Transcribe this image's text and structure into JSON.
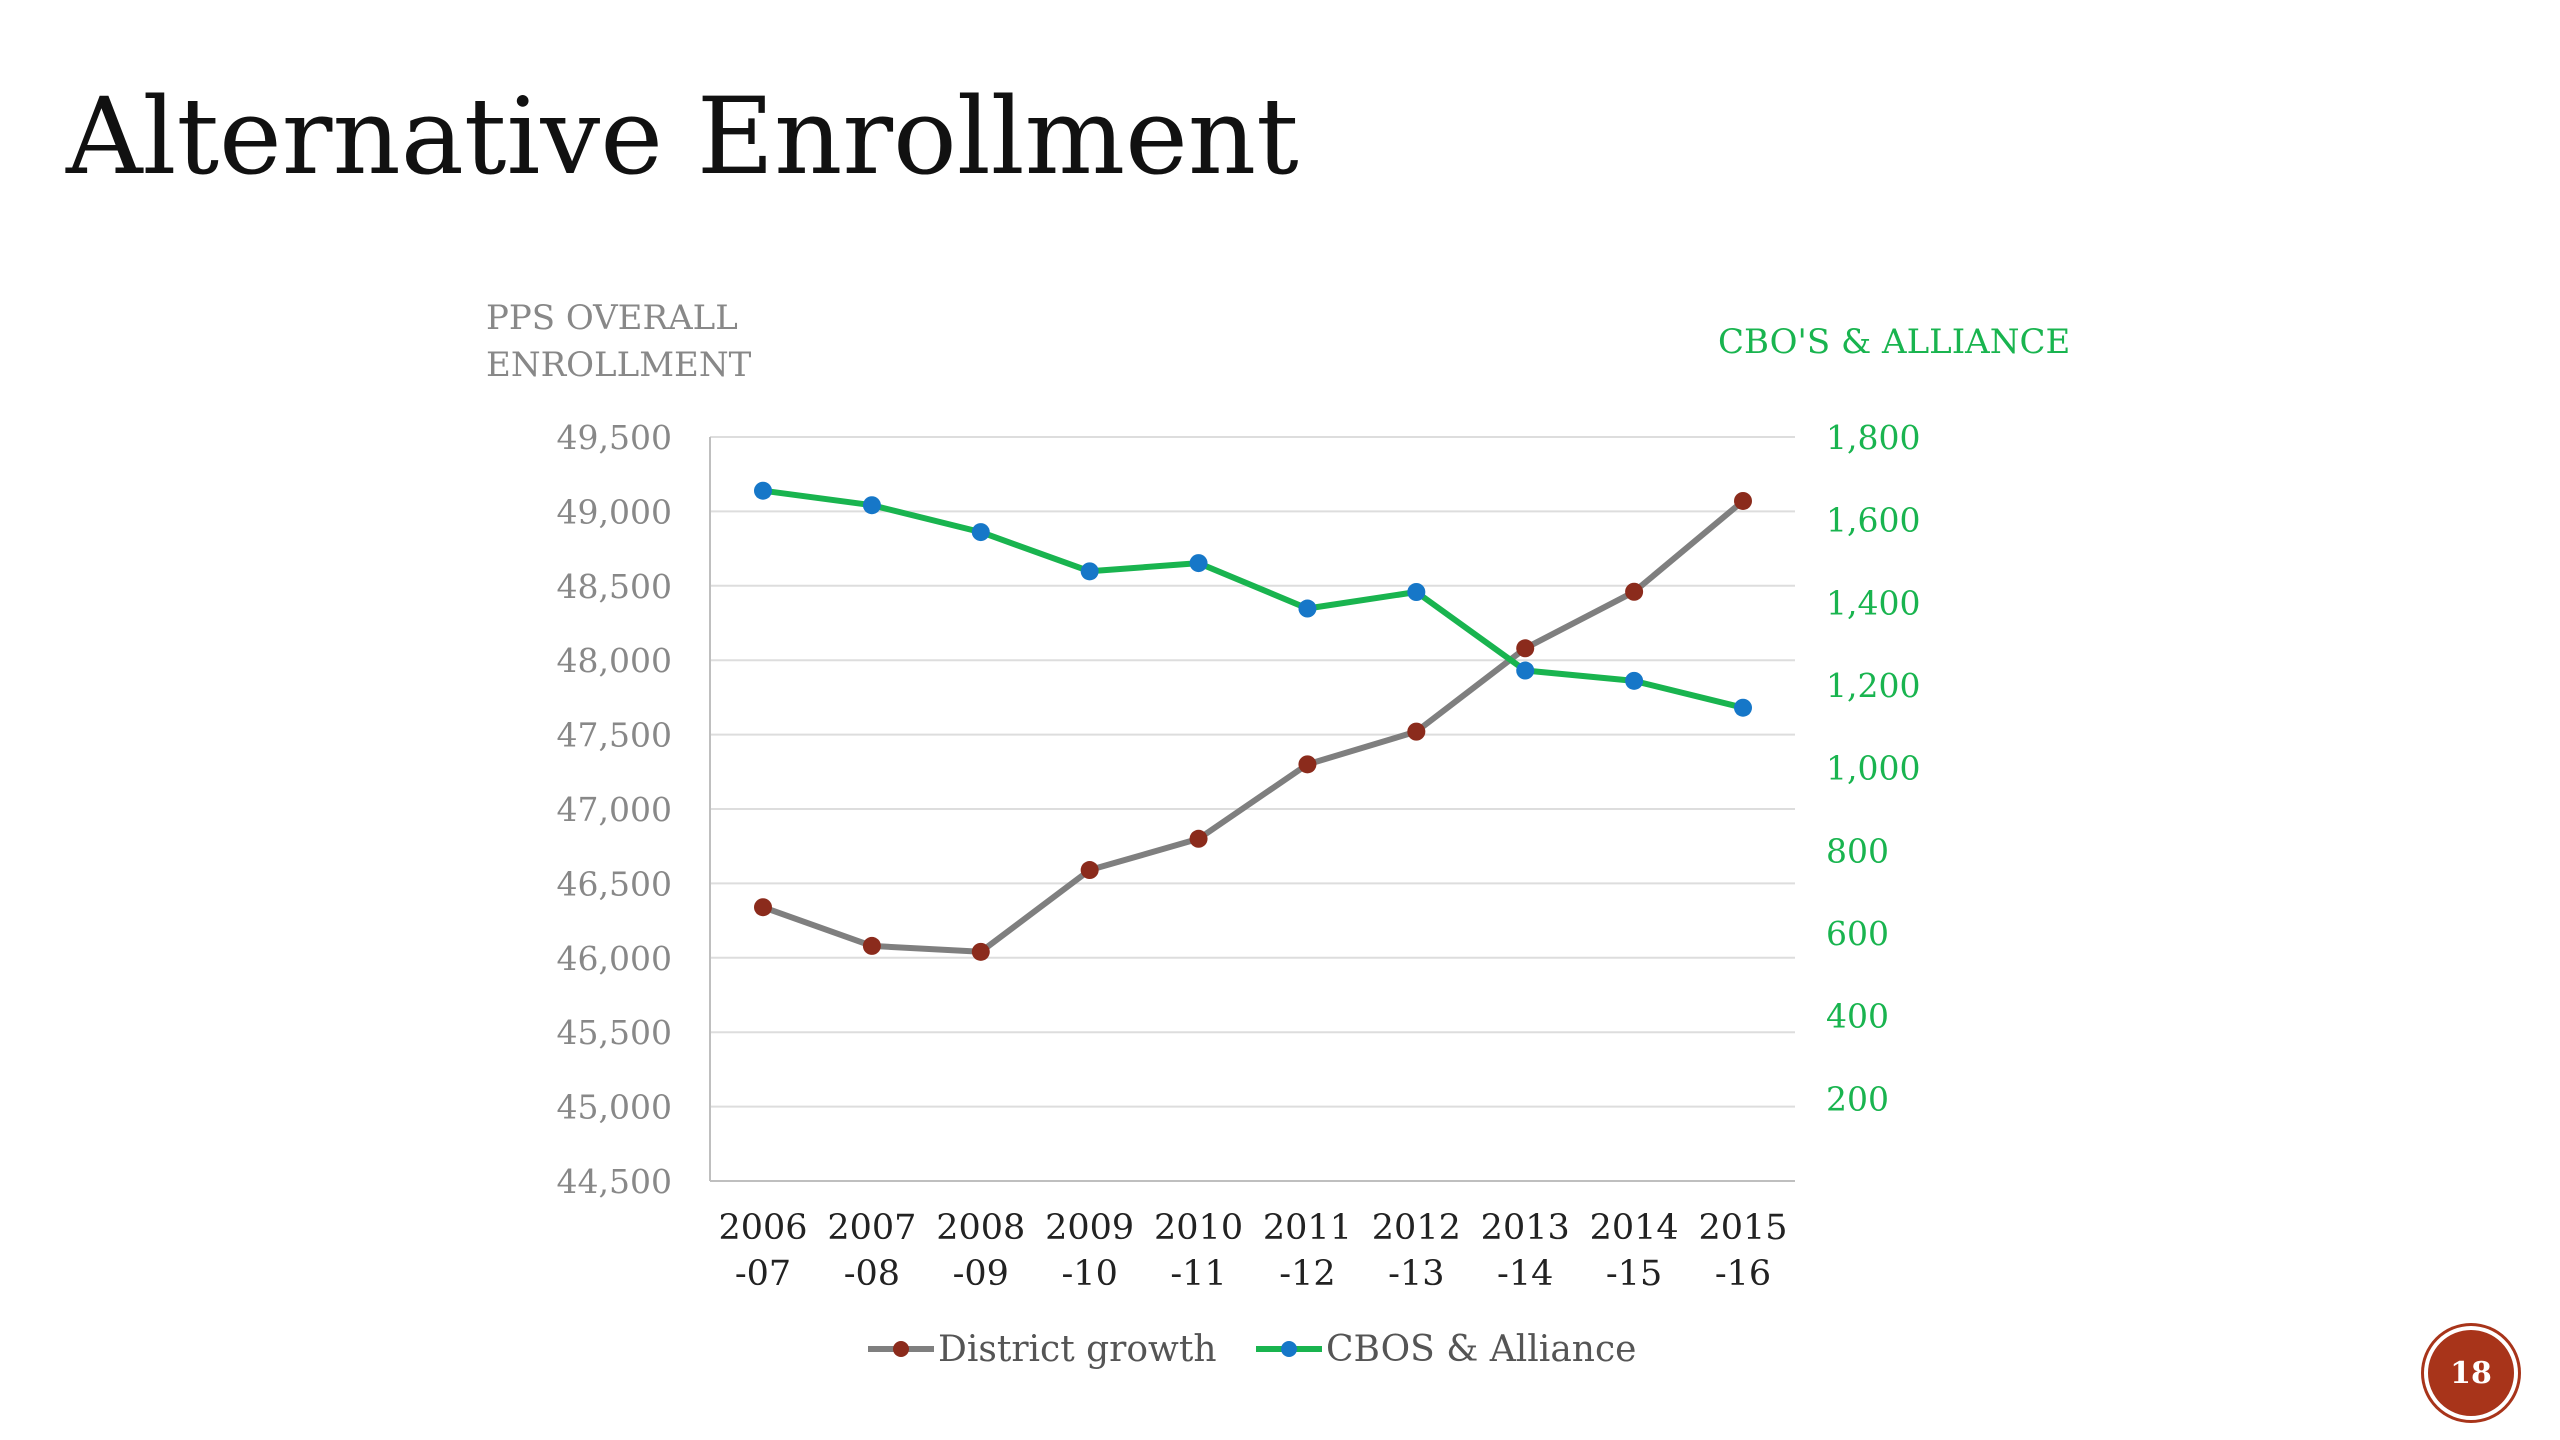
{
  "slide": {
    "title": "Alternative Enrollment",
    "page_number": "18"
  },
  "colors": {
    "district_line": "#7f7f7f",
    "district_marker": "#8b2b1c",
    "cbo_line": "#19b44f",
    "cbo_marker": "#1677c8",
    "left_axis_text": "#888888",
    "right_axis_text": "#19b44f",
    "grid": "#dddddd",
    "badge": "#a8341a"
  },
  "chart_data": {
    "type": "line",
    "title": "",
    "categories": [
      [
        "2006",
        "-07"
      ],
      [
        "2007",
        "-08"
      ],
      [
        "2008",
        "-09"
      ],
      [
        "2009",
        "-10"
      ],
      [
        "2010",
        "-11"
      ],
      [
        "2011",
        "-12"
      ],
      [
        "2012",
        "-13"
      ],
      [
        "2013",
        "-14"
      ],
      [
        "2014",
        "-15"
      ],
      [
        "2015",
        "-16"
      ]
    ],
    "left_axis": {
      "label_lines": [
        "PPS OVERALL",
        "ENROLLMENT"
      ],
      "ylim": [
        44500,
        49500
      ],
      "ticks": [
        44500,
        45000,
        45500,
        46000,
        46500,
        47000,
        47500,
        48000,
        48500,
        49000,
        49500
      ],
      "tick_labels": [
        "44,500",
        "45,000",
        "45,500",
        "46,000",
        "46,500",
        "47,000",
        "47,500",
        "48,000",
        "48,500",
        "49,000",
        "49,500"
      ]
    },
    "right_axis": {
      "label": "CBO'S & ALLIANCE",
      "ylim": [
        0,
        1800
      ],
      "ticks": [
        200,
        400,
        600,
        800,
        1000,
        1200,
        1400,
        1600,
        1800
      ],
      "tick_labels": [
        "200",
        "400",
        "600",
        "800",
        "1,000",
        "1,200",
        "1,400",
        "1,600",
        "1,800"
      ]
    },
    "series": [
      {
        "name": "District growth",
        "axis": "left",
        "values": [
          46340,
          46080,
          46040,
          46590,
          46800,
          47300,
          47520,
          48080,
          48460,
          49070
        ]
      },
      {
        "name": "CBOS & Alliance",
        "axis": "right",
        "values": [
          1670,
          1635,
          1570,
          1475,
          1495,
          1385,
          1425,
          1235,
          1210,
          1145
        ]
      }
    ],
    "legend_position": "bottom",
    "grid": true
  }
}
